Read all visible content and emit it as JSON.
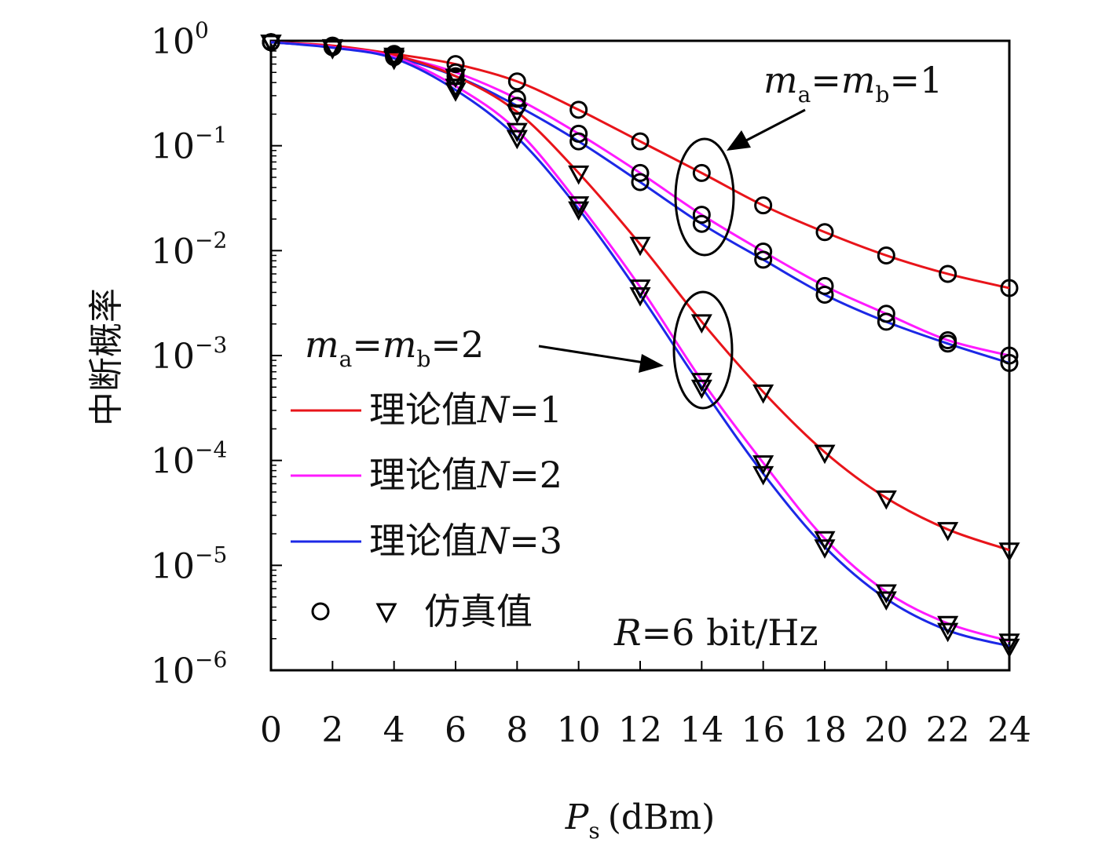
{
  "chart_data": {
    "type": "line",
    "xlabel": "P",
    "xlabel_sub": "s",
    "xlabel_unit": "(dBm)",
    "ylabel": "中断概率",
    "y_scale": "log",
    "xlim": [
      0,
      24
    ],
    "ylim": [
      1e-06,
      1
    ],
    "x_ticks": [
      "0",
      "2",
      "4",
      "6",
      "8",
      "10",
      "12",
      "14",
      "16",
      "18",
      "20",
      "22",
      "24"
    ],
    "y_ticks": [
      {
        "base": "10",
        "exp": "0"
      },
      {
        "base": "10",
        "exp": "−1"
      },
      {
        "base": "10",
        "exp": "−2"
      },
      {
        "base": "10",
        "exp": "−3"
      },
      {
        "base": "10",
        "exp": "−4"
      },
      {
        "base": "10",
        "exp": "−5"
      },
      {
        "base": "10",
        "exp": "−6"
      }
    ],
    "x": [
      0,
      2,
      4,
      6,
      8,
      10,
      12,
      14,
      16,
      18,
      20,
      22,
      24
    ],
    "series": [
      {
        "name": "理论值N=1",
        "group": "m=1",
        "color": "#e8141a",
        "marker": "circle",
        "values": [
          0.97,
          0.9,
          0.75,
          0.6,
          0.41,
          0.22,
          0.11,
          0.055,
          0.027,
          0.015,
          0.009,
          0.006,
          0.0044
        ]
      },
      {
        "name": "理论值N=2",
        "group": "m=1",
        "color": "#ff1aff",
        "marker": "circle",
        "values": [
          0.97,
          0.88,
          0.72,
          0.5,
          0.28,
          0.13,
          0.055,
          0.022,
          0.0098,
          0.0046,
          0.0025,
          0.0014,
          0.001
        ]
      },
      {
        "name": "理论值N=3",
        "group": "m=1",
        "color": "#1c28e6",
        "marker": "circle",
        "values": [
          0.97,
          0.87,
          0.7,
          0.46,
          0.24,
          0.11,
          0.045,
          0.018,
          0.0082,
          0.0038,
          0.0021,
          0.0013,
          0.00085
        ]
      },
      {
        "name": "理论值N=1",
        "group": "m=2",
        "color": "#e8141a",
        "marker": "triangle",
        "values": [
          0.97,
          0.88,
          0.73,
          0.46,
          0.21,
          0.055,
          0.0115,
          0.0021,
          0.00045,
          0.00012,
          4.4e-05,
          2.2e-05,
          1.4e-05
        ]
      },
      {
        "name": "理论值N=2",
        "group": "m=2",
        "color": "#ff1aff",
        "marker": "triangle",
        "values": [
          0.97,
          0.87,
          0.7,
          0.37,
          0.14,
          0.028,
          0.0045,
          0.00058,
          9.5e-05,
          1.8e-05,
          5.6e-06,
          2.8e-06,
          1.9e-06
        ]
      },
      {
        "name": "理论值N=3",
        "group": "m=2",
        "color": "#1c28e6",
        "marker": "triangle",
        "values": [
          0.97,
          0.86,
          0.68,
          0.34,
          0.12,
          0.025,
          0.0038,
          0.0005,
          7.5e-05,
          1.5e-05,
          4.8e-06,
          2.4e-06,
          1.7e-06
        ]
      }
    ],
    "legend": [
      {
        "label": "理论值",
        "var": "N",
        "eq": "=1",
        "color": "#e8141a"
      },
      {
        "label": "理论值",
        "var": "N",
        "eq": "=2",
        "color": "#ff1aff"
      },
      {
        "label": "理论值",
        "var": "N",
        "eq": "=3",
        "color": "#1c28e6"
      }
    ],
    "legend_sim_label": "仿真值",
    "annotations": {
      "m1_a": "m",
      "m1_a_sub": "a",
      "m1_eq1": "=",
      "m1_b": "m",
      "m1_b_sub": "b",
      "m1_eq2": "=1",
      "m2_a": "m",
      "m2_a_sub": "a",
      "m2_eq1": "=",
      "m2_b": "m",
      "m2_b_sub": "b",
      "m2_eq2": "=2",
      "rate_var": "R",
      "rate_text": "=6 bit/Hz"
    },
    "grid": false,
    "legend_position": "lower-left"
  }
}
